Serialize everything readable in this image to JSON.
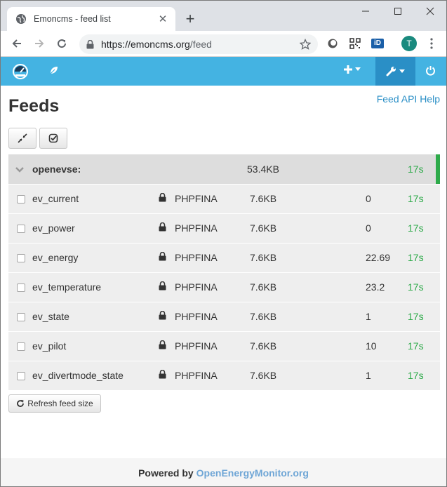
{
  "browser": {
    "tab_title": "Emoncms - feed list",
    "url_host": "https://emoncms.org",
    "url_path": "/feed",
    "avatar_letter": "T",
    "ext_label": "iD"
  },
  "page": {
    "title": "Feeds",
    "api_help": "Feed API Help",
    "refresh_label": "Refresh feed size"
  },
  "group": {
    "name": "openevse:",
    "size": "53.4KB",
    "updated": "17s"
  },
  "feeds": [
    {
      "name": "ev_current",
      "engine": "PHPFINA",
      "size": "7.6KB",
      "value": "0",
      "updated": "17s"
    },
    {
      "name": "ev_power",
      "engine": "PHPFINA",
      "size": "7.6KB",
      "value": "0",
      "updated": "17s"
    },
    {
      "name": "ev_energy",
      "engine": "PHPFINA",
      "size": "7.6KB",
      "value": "22.69",
      "updated": "17s"
    },
    {
      "name": "ev_temperature",
      "engine": "PHPFINA",
      "size": "7.6KB",
      "value": "23.2",
      "updated": "17s"
    },
    {
      "name": "ev_state",
      "engine": "PHPFINA",
      "size": "7.6KB",
      "value": "1",
      "updated": "17s"
    },
    {
      "name": "ev_pilot",
      "engine": "PHPFINA",
      "size": "7.6KB",
      "value": "10",
      "updated": "17s"
    },
    {
      "name": "ev_divertmode_state",
      "engine": "PHPFINA",
      "size": "7.6KB",
      "value": "1",
      "updated": "17s"
    }
  ],
  "footer": {
    "prefix": "Powered by",
    "link": "OpenEnergyMonitor.org"
  },
  "colors": {
    "nav": "#44b3e2",
    "nav_active": "#2a8fc6",
    "status_green": "#2eaa4a",
    "link": "#2a8fc6"
  }
}
